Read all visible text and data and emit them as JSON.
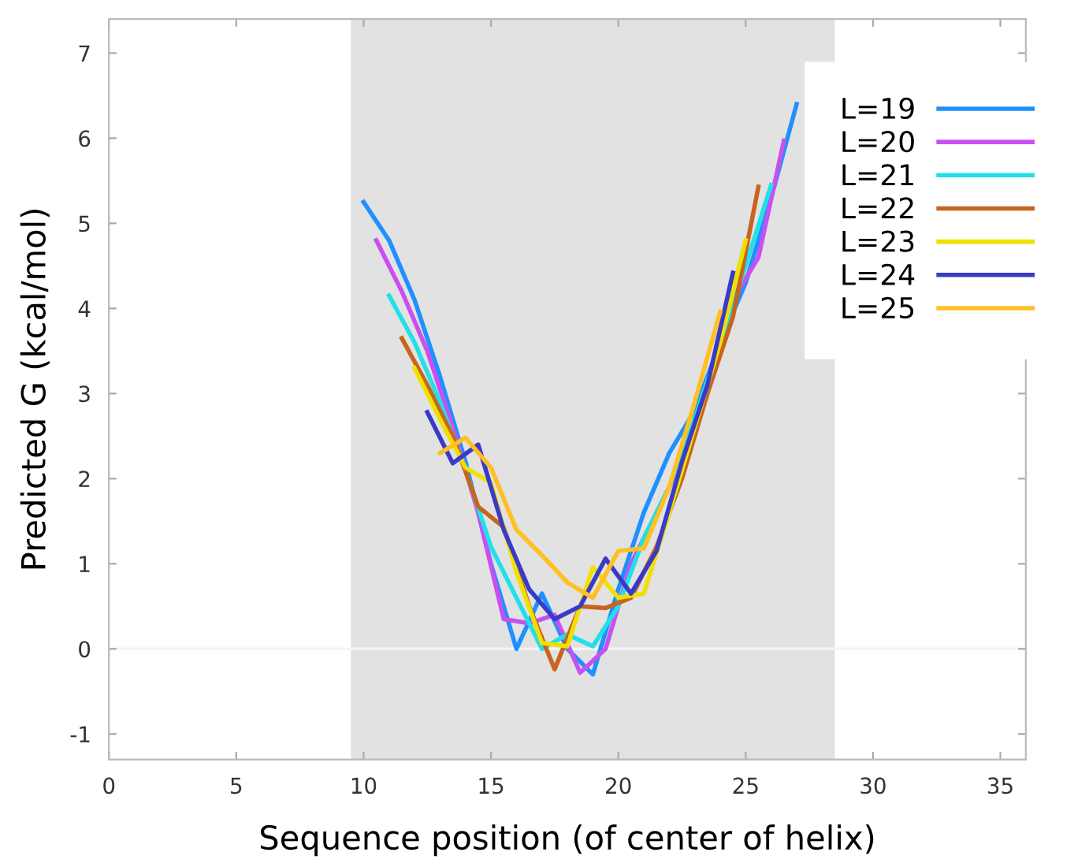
{
  "chart_data": {
    "type": "line",
    "xlabel": "Sequence position (of center of helix)",
    "ylabel": "Predicted G (kcal/mol)",
    "xlim": [
      0,
      36
    ],
    "xticks": [
      0,
      5,
      10,
      15,
      20,
      25,
      30,
      35
    ],
    "ylim": [
      -1.3,
      7.4
    ],
    "yticks": [
      -1,
      0,
      1,
      2,
      3,
      4,
      5,
      6,
      7
    ],
    "grid": false,
    "legend": "top right",
    "line_style": "solid",
    "marker": "none",
    "bands": [
      {
        "axis": "x",
        "from": 9.5,
        "to": 28.5,
        "color": "#e2e2e2"
      }
    ],
    "ref_lines": [
      {
        "axis": "y",
        "value": 0,
        "color": "#f4f4f4"
      }
    ],
    "series": [
      {
        "name": "L=19",
        "color": "#1e90ff",
        "x": [
          10,
          11,
          12,
          13,
          14,
          15,
          16,
          17,
          18,
          19,
          20,
          21,
          22,
          23,
          24,
          25,
          26,
          27
        ],
        "values": [
          5.25,
          4.8,
          4.1,
          3.2,
          2.2,
          1.0,
          0.0,
          0.65,
          0.0,
          -0.3,
          0.7,
          1.6,
          2.3,
          2.8,
          3.6,
          4.3,
          5.3,
          6.4
        ]
      },
      {
        "name": "L=20",
        "color": "#c850f0",
        "x": [
          10.5,
          11.5,
          12.5,
          13.5,
          14.5,
          15.5,
          16.5,
          17.5,
          18.5,
          19.5,
          20.5,
          21.5,
          22.5,
          23.5,
          24.5,
          25.5,
          26.5
        ],
        "values": [
          4.8,
          4.2,
          3.5,
          2.6,
          1.6,
          0.35,
          0.3,
          0.4,
          -0.28,
          0.0,
          1.0,
          1.6,
          2.2,
          3.1,
          4.1,
          4.6,
          5.97
        ]
      },
      {
        "name": "L=21",
        "color": "#20e0e8",
        "x": [
          11,
          12,
          13,
          14,
          15,
          16,
          17,
          18,
          19,
          20,
          21,
          22,
          23,
          24,
          25,
          26
        ],
        "values": [
          4.15,
          3.6,
          2.9,
          2.1,
          1.2,
          0.6,
          0.0,
          0.17,
          0.03,
          0.5,
          1.3,
          1.9,
          2.7,
          3.6,
          4.5,
          5.45
        ]
      },
      {
        "name": "L=22",
        "color": "#c8641e",
        "x": [
          11.5,
          12.5,
          13.5,
          14.5,
          15.5,
          16.5,
          17.5,
          18.5,
          19.5,
          20.5,
          21.5,
          22.5,
          23.5,
          24.5,
          25.5
        ],
        "values": [
          3.65,
          3.1,
          2.5,
          1.67,
          1.43,
          0.5,
          -0.24,
          0.5,
          0.48,
          0.6,
          1.2,
          2.0,
          3.0,
          3.9,
          5.43
        ]
      },
      {
        "name": "L=23",
        "color": "#f0e000",
        "x": [
          12,
          13,
          14,
          15,
          16,
          17,
          18,
          19,
          20,
          21,
          22,
          23,
          24,
          25
        ],
        "values": [
          3.3,
          2.7,
          2.13,
          1.95,
          0.9,
          0.07,
          0.03,
          0.96,
          0.6,
          0.65,
          1.6,
          2.6,
          3.6,
          4.8
        ]
      },
      {
        "name": "L=24",
        "color": "#3a3ac8",
        "x": [
          12.5,
          13.5,
          14.5,
          15.5,
          16.5,
          17.5,
          18.5,
          19.5,
          20.5,
          21.5,
          22.5,
          23.5,
          24.5
        ],
        "values": [
          2.78,
          2.18,
          2.4,
          1.4,
          0.7,
          0.35,
          0.5,
          1.06,
          0.65,
          1.15,
          2.2,
          3.1,
          4.42
        ]
      },
      {
        "name": "L=25",
        "color": "#ffc020",
        "x": [
          13,
          14,
          15,
          16,
          17,
          18,
          19,
          20,
          21,
          22,
          23,
          24
        ],
        "values": [
          2.3,
          2.48,
          2.13,
          1.4,
          1.1,
          0.78,
          0.6,
          1.15,
          1.18,
          1.9,
          2.9,
          3.96
        ]
      }
    ]
  }
}
